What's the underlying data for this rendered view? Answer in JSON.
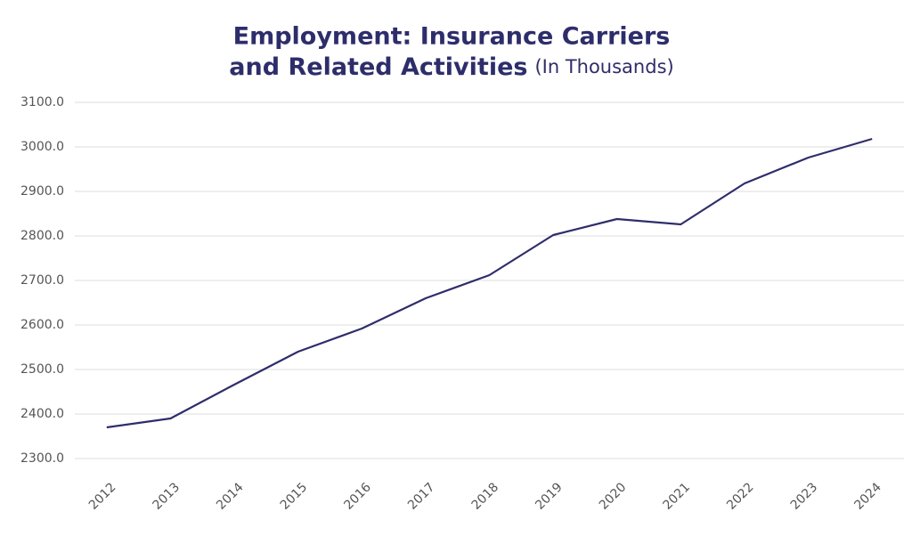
{
  "chart_data": {
    "type": "line",
    "title": [
      "Employment: Insurance Carriers",
      "and Related Activities"
    ],
    "subtitle": "(In Thousands)",
    "categories": [
      "2012",
      "2013",
      "2014",
      "2015",
      "2016",
      "2017",
      "2018",
      "2019",
      "2020",
      "2021",
      "2022",
      "2023",
      "2024"
    ],
    "values": [
      2370,
      2390,
      2466,
      2540,
      2592,
      2660,
      2712,
      2802,
      2838,
      2826,
      2918,
      2976,
      3018
    ],
    "color": "#2e2d6b",
    "ylim": [
      2300,
      3100
    ],
    "yticks": [
      {
        "value": 2300,
        "label": "2300.0"
      },
      {
        "value": 2400,
        "label": "2400.0"
      },
      {
        "value": 2500,
        "label": "2500.0"
      },
      {
        "value": 2600,
        "label": "2600.0"
      },
      {
        "value": 2700,
        "label": "2700.0"
      },
      {
        "value": 2800,
        "label": "2800.0"
      },
      {
        "value": 2900,
        "label": "2900.0"
      },
      {
        "value": 3000,
        "label": "3000.0"
      },
      {
        "value": 3100,
        "label": "3100.0"
      }
    ],
    "grid": true
  }
}
